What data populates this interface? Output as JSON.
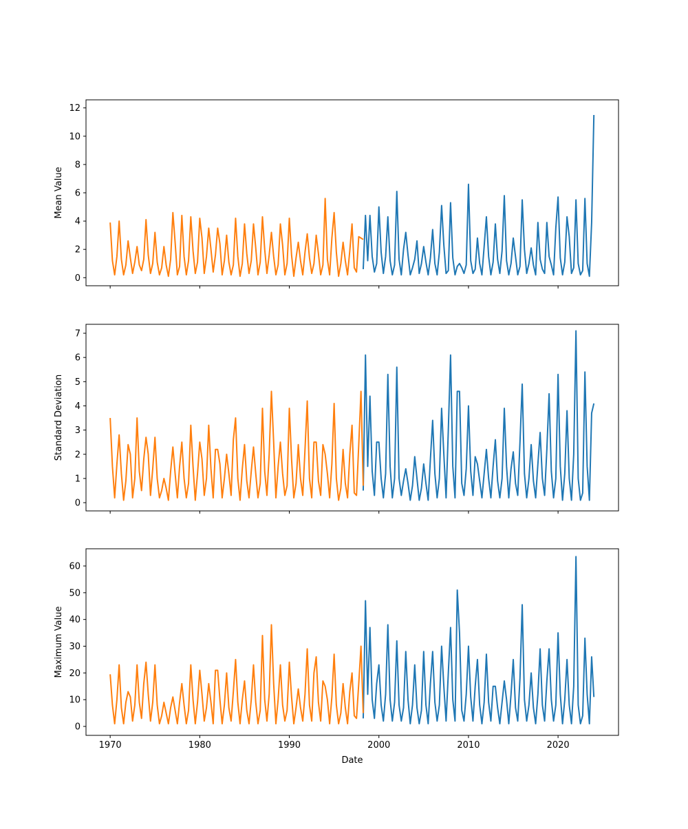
{
  "colors": {
    "series_a": "#1f77b4",
    "series_b": "#ff7f0e"
  },
  "chart_data": [
    {
      "type": "line",
      "ylabel": "Mean Value",
      "xlabel": "",
      "xlim": [
        1967.3,
        2026.75
      ],
      "ylim": [
        -0.57,
        12.57
      ],
      "xticks": [
        1970,
        1980,
        1990,
        2000,
        2010,
        2020
      ],
      "show_xticklabels": false,
      "yticks": [
        0,
        2,
        4,
        6,
        8,
        10,
        12
      ],
      "grid": false,
      "series": [
        {
          "name": "recent",
          "color": "#1f77b4",
          "start": 1998.25,
          "step": 0.25,
          "values": [
            0.6,
            4.4,
            1.2,
            4.4,
            1.5,
            0.4,
            1.0,
            5.0,
            1.8,
            0.3,
            1.5,
            4.3,
            1.2,
            0.2,
            0.9,
            6.1,
            1.3,
            0.2,
            2.0,
            3.2,
            1.6,
            0.2,
            0.7,
            1.3,
            2.6,
            0.3,
            1.0,
            2.2,
            1.1,
            0.2,
            1.4,
            3.4,
            1.0,
            0.2,
            1.8,
            5.1,
            2.3,
            0.3,
            0.5,
            5.3,
            1.4,
            0.2,
            0.8,
            1.0,
            0.7,
            0.3,
            0.9,
            6.6,
            1.2,
            0.3,
            0.6,
            2.8,
            1.0,
            0.2,
            2.2,
            4.3,
            1.5,
            0.2,
            1.1,
            3.8,
            1.3,
            0.3,
            1.9,
            5.8,
            1.2,
            0.2,
            1.0,
            2.8,
            1.5,
            0.2,
            0.8,
            5.5,
            2.0,
            0.3,
            1.0,
            2.1,
            0.9,
            0.2,
            3.9,
            1.3,
            0.6,
            0.3,
            3.9,
            1.5,
            0.9,
            0.2,
            3.5,
            5.7,
            1.4,
            0.2,
            1.1,
            4.3,
            2.9,
            0.3,
            0.7,
            5.5,
            1.0,
            0.2,
            0.5,
            5.6,
            1.0,
            0.1,
            3.9,
            11.5
          ]
        },
        {
          "name": "historical",
          "color": "#ff7f0e",
          "start": 1970.0,
          "step": 0.25,
          "values": [
            3.9,
            1.2,
            0.2,
            1.5,
            4.0,
            1.3,
            0.2,
            0.9,
            2.6,
            1.4,
            0.3,
            1.1,
            2.2,
            0.9,
            0.5,
            1.3,
            4.1,
            1.6,
            0.3,
            1.0,
            3.2,
            1.1,
            0.2,
            0.7,
            2.2,
            0.9,
            0.1,
            1.3,
            4.6,
            2.5,
            0.2,
            0.8,
            4.4,
            1.5,
            0.2,
            1.2,
            4.3,
            1.9,
            0.3,
            1.1,
            4.2,
            2.8,
            0.3,
            1.5,
            3.5,
            2.0,
            0.4,
            1.6,
            3.5,
            2.4,
            0.2,
            1.2,
            3.0,
            1.1,
            0.2,
            0.9,
            4.2,
            1.5,
            0.1,
            1.0,
            3.8,
            1.7,
            0.3,
            1.2,
            3.8,
            2.1,
            0.2,
            1.1,
            4.3,
            2.0,
            0.3,
            1.6,
            3.2,
            1.5,
            0.2,
            0.9,
            3.8,
            2.3,
            0.2,
            1.0,
            4.2,
            1.6,
            0.1,
            1.4,
            2.5,
            1.2,
            0.2,
            1.8,
            3.1,
            1.4,
            0.3,
            1.0,
            3.0,
            1.7,
            0.2,
            0.9,
            5.6,
            1.3,
            0.2,
            2.8,
            4.6,
            1.8,
            0.1,
            1.0,
            2.5,
            1.2,
            0.2,
            1.9,
            3.8,
            0.7,
            0.4,
            2.9,
            2.8,
            2.7
          ]
        }
      ]
    },
    {
      "type": "line",
      "ylabel": "Standard Deviation",
      "xlabel": "",
      "xlim": [
        1967.3,
        2026.75
      ],
      "ylim": [
        -0.34,
        7.37
      ],
      "xticks": [
        1970,
        1980,
        1990,
        2000,
        2010,
        2020
      ],
      "show_xticklabels": false,
      "yticks": [
        0,
        1,
        2,
        3,
        4,
        5,
        6,
        7
      ],
      "grid": false,
      "series": [
        {
          "name": "recent",
          "color": "#1f77b4",
          "start": 1998.25,
          "step": 0.25,
          "values": [
            0.5,
            6.1,
            1.5,
            4.4,
            1.3,
            0.3,
            2.5,
            2.5,
            1.0,
            0.2,
            1.2,
            5.3,
            1.5,
            0.2,
            1.0,
            5.6,
            1.0,
            0.3,
            0.9,
            1.4,
            0.8,
            0.1,
            0.7,
            1.9,
            1.0,
            0.1,
            0.6,
            1.6,
            0.8,
            0.1,
            1.8,
            3.4,
            1.2,
            0.2,
            1.0,
            3.9,
            2.0,
            0.2,
            3.0,
            6.1,
            1.5,
            0.2,
            4.6,
            4.6,
            0.8,
            0.3,
            1.4,
            4.0,
            1.3,
            0.3,
            1.9,
            1.6,
            0.9,
            0.2,
            1.2,
            2.2,
            1.0,
            0.2,
            1.5,
            2.6,
            0.9,
            0.2,
            1.0,
            3.9,
            1.5,
            0.2,
            1.4,
            2.1,
            0.8,
            0.3,
            2.5,
            4.9,
            1.2,
            0.2,
            1.0,
            2.4,
            0.9,
            0.2,
            1.6,
            2.9,
            1.0,
            0.3,
            2.2,
            4.5,
            1.3,
            0.2,
            1.0,
            5.3,
            1.5,
            0.1,
            1.2,
            3.8,
            1.0,
            0.1,
            2.0,
            7.1,
            1.0,
            0.1,
            0.4,
            5.4,
            1.5,
            0.1,
            3.7,
            4.1
          ]
        },
        {
          "name": "historical",
          "color": "#ff7f0e",
          "start": 1970.0,
          "step": 0.25,
          "values": [
            3.5,
            1.5,
            0.2,
            1.6,
            2.8,
            1.2,
            0.1,
            0.9,
            2.4,
            2.0,
            0.2,
            1.0,
            3.5,
            1.3,
            0.5,
            1.8,
            2.7,
            2.0,
            0.3,
            1.4,
            2.7,
            1.0,
            0.2,
            0.5,
            1.0,
            0.6,
            0.1,
            1.3,
            2.3,
            1.2,
            0.2,
            1.5,
            2.5,
            1.0,
            0.2,
            0.8,
            3.2,
            1.5,
            0.1,
            1.2,
            2.5,
            1.8,
            0.3,
            1.0,
            3.2,
            1.4,
            0.2,
            2.2,
            2.2,
            1.6,
            0.2,
            1.0,
            2.0,
            1.2,
            0.3,
            2.6,
            3.5,
            1.0,
            0.1,
            1.4,
            2.4,
            0.9,
            0.2,
            1.3,
            2.3,
            1.2,
            0.2,
            0.8,
            3.9,
            1.3,
            0.3,
            2.0,
            4.6,
            2.5,
            0.2,
            1.5,
            2.5,
            1.2,
            0.3,
            0.7,
            3.9,
            1.8,
            0.2,
            0.8,
            2.4,
            1.0,
            0.3,
            2.2,
            4.2,
            1.0,
            0.2,
            2.5,
            2.5,
            0.9,
            0.3,
            2.4,
            2.0,
            1.2,
            0.2,
            1.6,
            4.1,
            1.0,
            0.1,
            0.6,
            2.2,
            0.8,
            0.2,
            2.0,
            3.2,
            0.4,
            0.3,
            2.4,
            4.6,
            0.7
          ]
        }
      ]
    },
    {
      "type": "line",
      "ylabel": "Maximum Value",
      "xlabel": "Date",
      "xlim": [
        1967.3,
        2026.75
      ],
      "ylim": [
        -3.35,
        66.44
      ],
      "xticks": [
        1970,
        1980,
        1990,
        2000,
        2010,
        2020
      ],
      "show_xticklabels": true,
      "yticks": [
        0,
        10,
        20,
        30,
        40,
        50,
        60
      ],
      "grid": false,
      "series": [
        {
          "name": "recent",
          "color": "#1f77b4",
          "start": 1998.25,
          "step": 0.25,
          "values": [
            3,
            47,
            12,
            37,
            10,
            3,
            16,
            23,
            8,
            2,
            12,
            38,
            10,
            2,
            9,
            32,
            8,
            2,
            7,
            28,
            10,
            1,
            8,
            23,
            7,
            1,
            6,
            28,
            8,
            1,
            16,
            28,
            9,
            2,
            8,
            30,
            15,
            2,
            20,
            37,
            10,
            2,
            51,
            35,
            6,
            2,
            12,
            30,
            11,
            2,
            15,
            25,
            8,
            1,
            9,
            27,
            9,
            2,
            15,
            15,
            7,
            1,
            9,
            17,
            10,
            1,
            12,
            25,
            7,
            2,
            18,
            45.5,
            10,
            2,
            8,
            20,
            7,
            1,
            12,
            29,
            8,
            2,
            17,
            29,
            10,
            2,
            8,
            35,
            12,
            1,
            10,
            25,
            8,
            1,
            15,
            63.5,
            8,
            1,
            4,
            33,
            12,
            1,
            26,
            11
          ]
        },
        {
          "name": "historical",
          "color": "#ff7f0e",
          "start": 1970.0,
          "step": 0.25,
          "values": [
            19.5,
            8,
            1,
            10,
            23,
            7,
            1,
            9,
            13,
            11,
            2,
            8,
            23,
            9,
            3,
            16,
            24,
            12,
            2,
            9,
            23,
            8,
            1,
            4,
            9,
            5,
            1,
            7,
            11,
            6,
            1,
            9,
            16,
            8,
            1,
            6,
            23,
            10,
            1,
            9,
            21,
            12,
            2,
            7,
            16,
            9,
            1,
            21,
            21,
            10,
            1,
            8,
            20,
            7,
            2,
            13,
            25,
            9,
            1,
            10,
            17,
            6,
            1,
            10,
            23,
            9,
            1,
            6,
            34,
            10,
            2,
            12,
            38,
            16,
            1,
            10,
            23,
            8,
            2,
            6,
            24,
            11,
            1,
            7,
            14,
            7,
            2,
            12,
            29,
            8,
            2,
            20,
            26,
            9,
            2,
            17,
            15,
            10,
            1,
            11,
            27,
            8,
            1,
            5,
            16,
            7,
            1,
            13,
            20,
            4,
            3,
            16,
            30,
            5
          ]
        }
      ]
    }
  ]
}
